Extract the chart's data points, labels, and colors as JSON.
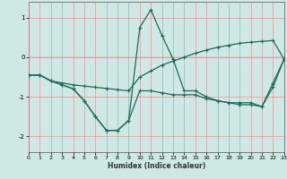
{
  "xlabel": "Humidex (Indice chaleur)",
  "background_color": "#cde8e5",
  "grid_color": "#e08888",
  "line_color": "#1a6b5a",
  "xlim": [
    0,
    23
  ],
  "ylim": [
    -2.4,
    1.4
  ],
  "yticks": [
    -2,
    -1,
    0,
    1
  ],
  "xticks": [
    0,
    1,
    2,
    3,
    4,
    5,
    6,
    7,
    8,
    9,
    10,
    11,
    12,
    13,
    14,
    15,
    16,
    17,
    18,
    19,
    20,
    21,
    22,
    23
  ],
  "line1_x": [
    0,
    1,
    2,
    3,
    4,
    5,
    6,
    7,
    8,
    9,
    10,
    11,
    12,
    13,
    14,
    15,
    16,
    17,
    18,
    19,
    20,
    21,
    22,
    23
  ],
  "line1_y": [
    -0.45,
    -0.45,
    -0.6,
    -0.7,
    -0.8,
    -1.1,
    -1.5,
    -1.85,
    -1.85,
    -1.6,
    -0.85,
    -0.85,
    -0.9,
    -0.95,
    -0.95,
    -0.95,
    -1.05,
    -1.1,
    -1.15,
    -1.15,
    -1.15,
    -1.25,
    -0.75,
    -0.05
  ],
  "line2_x": [
    0,
    1,
    2,
    3,
    4,
    5,
    6,
    7,
    8,
    9,
    10,
    11,
    12,
    13,
    14,
    15,
    16,
    17,
    18,
    19,
    20,
    21,
    22,
    23
  ],
  "line2_y": [
    -0.45,
    -0.45,
    -0.6,
    -0.65,
    -0.7,
    -0.73,
    -0.76,
    -0.79,
    -0.82,
    -0.85,
    -0.5,
    -0.35,
    -0.2,
    -0.1,
    0.0,
    0.1,
    0.18,
    0.25,
    0.3,
    0.35,
    0.38,
    0.4,
    0.42,
    -0.05
  ],
  "line3_x": [
    0,
    1,
    2,
    3,
    4,
    5,
    6,
    7,
    8,
    9,
    10,
    11,
    12,
    13,
    14,
    15,
    16,
    17,
    18,
    19,
    20,
    21,
    22,
    23
  ],
  "line3_y": [
    -0.45,
    -0.45,
    -0.6,
    -0.7,
    -0.8,
    -1.1,
    -1.5,
    -1.85,
    -1.85,
    -1.6,
    0.75,
    1.2,
    0.55,
    -0.05,
    -0.85,
    -0.85,
    -1.0,
    -1.1,
    -1.15,
    -1.2,
    -1.2,
    -1.25,
    -0.65,
    -0.05
  ]
}
